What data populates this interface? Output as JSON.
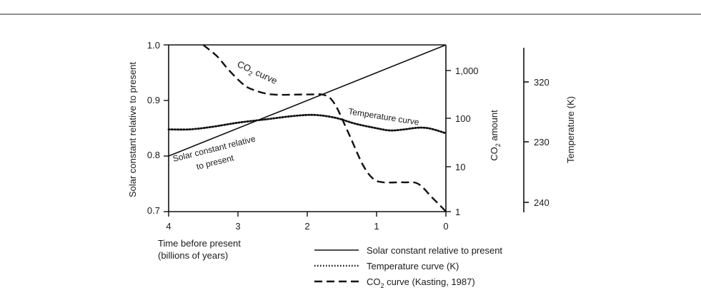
{
  "chart_data": {
    "type": "line",
    "x": {
      "label_line1": "Time before present",
      "label_line2": "(billions of years)",
      "lim": [
        4,
        0
      ],
      "ticks": [
        "4",
        "3",
        "2",
        "1",
        "0"
      ],
      "tick_values": [
        4,
        3,
        2,
        1,
        0
      ]
    },
    "y_left": {
      "label": "Solar constant relative to present",
      "lim": [
        0.7,
        1.0
      ],
      "ticks": [
        "1.0",
        "0.9",
        "0.8",
        "0.7"
      ],
      "tick_values": [
        1.0,
        0.9,
        0.8,
        0.7
      ]
    },
    "y_co2": {
      "label_prefix": "CO",
      "label_sub": "2",
      "label_suffix": " amount",
      "scale": "log",
      "ticks": [
        "1,000",
        "100",
        "10",
        "1"
      ],
      "tick_values": [
        1000,
        100,
        10,
        1
      ]
    },
    "y_temp": {
      "label": "Temperature (K)",
      "ticks": [
        "320",
        "230",
        "240"
      ]
    },
    "series": [
      {
        "name": "Solar constant relative to present",
        "style": "solid",
        "axis": "left",
        "points": [
          [
            4.0,
            0.8
          ],
          [
            0.0,
            1.0
          ]
        ]
      },
      {
        "name": "Temperature curve (K)",
        "style": "dotted",
        "axis": "left",
        "points": [
          [
            4.0,
            0.848
          ],
          [
            3.7,
            0.848
          ],
          [
            3.4,
            0.852
          ],
          [
            3.0,
            0.86
          ],
          [
            2.6,
            0.866
          ],
          [
            2.2,
            0.872
          ],
          [
            1.9,
            0.874
          ],
          [
            1.6,
            0.869
          ],
          [
            1.3,
            0.858
          ],
          [
            1.0,
            0.85
          ],
          [
            0.8,
            0.846
          ],
          [
            0.6,
            0.848
          ],
          [
            0.4,
            0.851
          ],
          [
            0.25,
            0.85
          ],
          [
            0.1,
            0.845
          ],
          [
            0.0,
            0.841
          ]
        ]
      },
      {
        "name": "CO2 curve (Kasting, 1987)",
        "style": "dashed",
        "axis": "co2",
        "points": [
          [
            3.5,
            3500
          ],
          [
            3.3,
            2000
          ],
          [
            3.15,
            1100
          ],
          [
            2.95,
            550
          ],
          [
            2.8,
            400
          ],
          [
            2.5,
            310
          ],
          [
            2.0,
            310
          ],
          [
            1.75,
            300
          ],
          [
            1.6,
            190
          ],
          [
            1.4,
            45
          ],
          [
            1.2,
            10
          ],
          [
            1.05,
            5
          ],
          [
            0.9,
            4.2
          ],
          [
            0.6,
            4.2
          ],
          [
            0.4,
            3.9
          ],
          [
            0.2,
            2.0
          ],
          [
            0.05,
            1.2
          ],
          [
            0.0,
            1.0
          ]
        ]
      }
    ],
    "annotations": {
      "co2_prefix": "CO",
      "co2_sub": "2",
      "co2_suffix": " curve",
      "temperature": "Temperature curve",
      "solar_line1": "Solar constant relative",
      "solar_line2": "to present"
    },
    "legend": {
      "position": "bottom-right",
      "solar": "Solar constant relative to present",
      "temperature": "Temperature curve (K)",
      "co2_prefix": "CO",
      "co2_sub": "2",
      "co2_suffix": " curve (Kasting, 1987)"
    }
  }
}
